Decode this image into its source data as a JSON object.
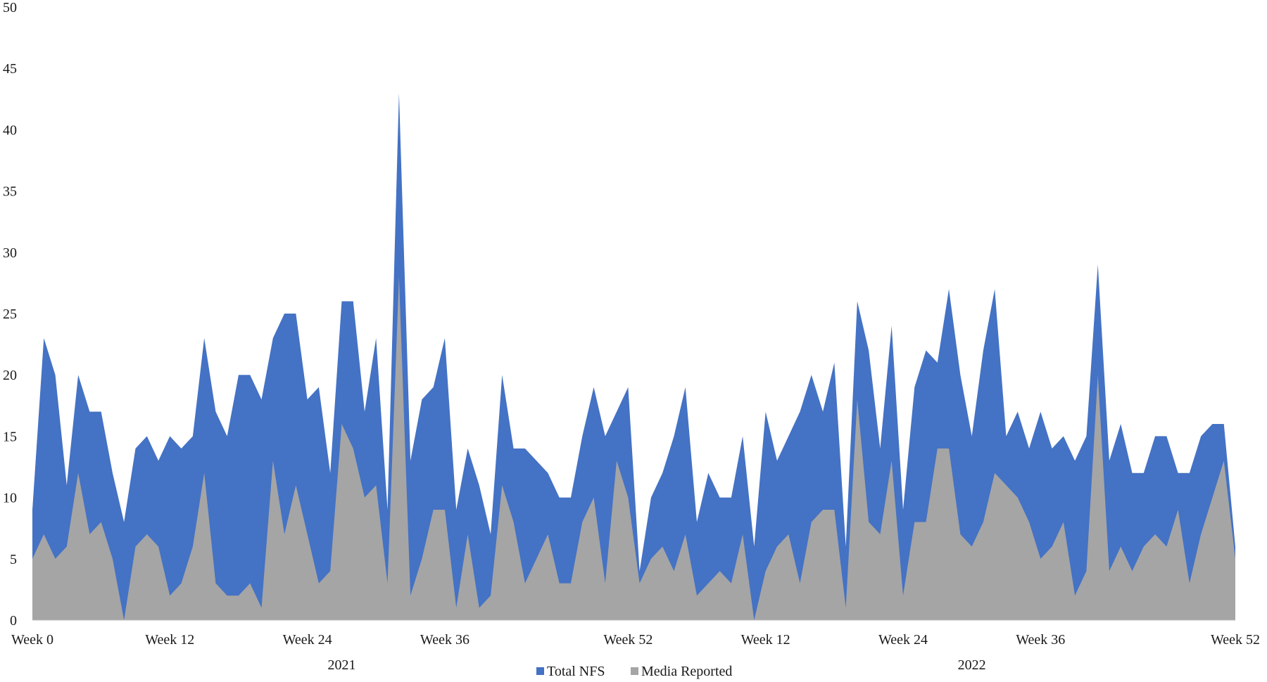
{
  "chart_data": {
    "type": "area",
    "title": "",
    "xlabel": "",
    "ylabel": "",
    "ylim": [
      0,
      50
    ],
    "y_ticks": [
      "0",
      "5",
      "10",
      "15",
      "20",
      "25",
      "30",
      "35",
      "40",
      "45",
      "50"
    ],
    "x_ticks": [
      {
        "label": "Week 0",
        "index": 0
      },
      {
        "label": "Week 12",
        "index": 12
      },
      {
        "label": "Week 24",
        "index": 24
      },
      {
        "label": "Week 36",
        "index": 36
      },
      {
        "label": "Week 52",
        "index": 52
      },
      {
        "label": "Week 12",
        "index": 64
      },
      {
        "label": "Week 24",
        "index": 76
      },
      {
        "label": "Week 36",
        "index": 88
      },
      {
        "label": "Week 52",
        "index": 105
      }
    ],
    "year_labels": [
      {
        "label": "2021",
        "center_index": 27
      },
      {
        "label": "2022",
        "center_index": 82
      }
    ],
    "legend_position": "bottom",
    "grid": false,
    "series": [
      {
        "name": "Total NFS",
        "color": "#4472C4",
        "values": [
          9,
          23,
          20,
          11,
          20,
          17,
          17,
          12,
          8,
          14,
          15,
          13,
          15,
          14,
          15,
          23,
          17,
          15,
          20,
          20,
          18,
          23,
          25,
          25,
          18,
          19,
          12,
          26,
          26,
          17,
          23,
          9,
          43,
          13,
          18,
          19,
          23,
          9,
          14,
          11,
          7,
          20,
          14,
          14,
          13,
          12,
          10,
          10,
          15,
          19,
          15,
          17,
          19,
          4,
          10,
          12,
          15,
          19,
          8,
          12,
          10,
          10,
          15,
          6,
          17,
          13,
          15,
          17,
          20,
          17,
          21,
          6,
          26,
          22,
          14,
          24,
          9,
          19,
          22,
          21,
          27,
          20,
          15,
          22,
          27,
          15,
          17,
          14,
          17,
          14,
          15,
          13,
          15,
          29,
          13,
          16,
          12,
          12,
          15,
          15,
          12,
          12,
          15,
          16,
          16,
          6
        ]
      },
      {
        "name": "Media Reported",
        "color": "#A5A5A5",
        "values": [
          5,
          7,
          5,
          6,
          12,
          7,
          8,
          5,
          0,
          6,
          7,
          6,
          2,
          3,
          6,
          12,
          3,
          2,
          2,
          3,
          1,
          13,
          7,
          11,
          7,
          3,
          4,
          16,
          14,
          10,
          11,
          3,
          28,
          2,
          5,
          9,
          9,
          1,
          7,
          1,
          2,
          11,
          8,
          3,
          5,
          7,
          3,
          3,
          8,
          10,
          3,
          13,
          10,
          3,
          5,
          6,
          4,
          7,
          2,
          3,
          4,
          3,
          7,
          0,
          4,
          6,
          7,
          3,
          8,
          9,
          9,
          1,
          18,
          8,
          7,
          13,
          2,
          8,
          8,
          14,
          14,
          7,
          6,
          8,
          12,
          11,
          10,
          8,
          5,
          6,
          8,
          2,
          4,
          20,
          4,
          6,
          4,
          6,
          7,
          6,
          9,
          3,
          7,
          10,
          13,
          5
        ]
      }
    ]
  }
}
